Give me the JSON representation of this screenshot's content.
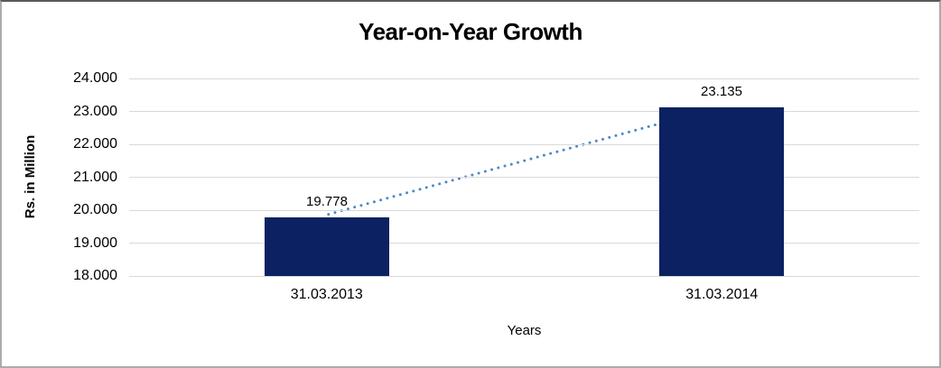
{
  "chart_data": {
    "type": "bar",
    "title": "Year-on-Year Growth",
    "xlabel": "Years",
    "ylabel": "Rs. in Million",
    "categories": [
      "31.03.2013",
      "31.03.2014"
    ],
    "series": [
      {
        "name": "Year-on-Year Growth",
        "values": [
          19778,
          23135
        ],
        "value_labels": [
          "19.778",
          "23.135"
        ]
      }
    ],
    "ylim": [
      18000,
      24000
    ],
    "y_tick_step": 1000,
    "y_tick_labels": [
      "18.000",
      "19.000",
      "20.000",
      "21.000",
      "22.000",
      "23.000",
      "24.000"
    ],
    "grid": true,
    "legend": "none",
    "trendline": {
      "type": "linear",
      "style": "dotted",
      "connects": "bar tops"
    },
    "colors": {
      "bar": "#0b2161",
      "trend": "#4e87c7",
      "gridline": "#d9d9d9",
      "text": "#000000",
      "frame_top": "#595959",
      "frame_side": "#ababab"
    }
  }
}
